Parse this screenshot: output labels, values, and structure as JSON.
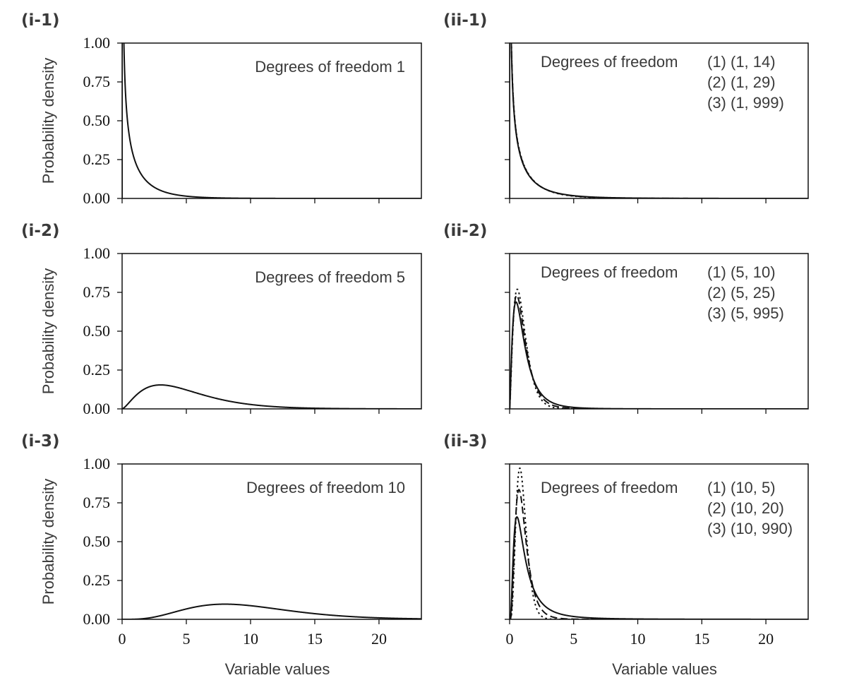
{
  "chart_data": [
    {
      "id": "i-1",
      "panel_label": "(i-1)",
      "type": "line",
      "distribution": "chi-square",
      "legend_text": "Degrees of freedom 1",
      "ylabel": "Probability density",
      "xlabel": "",
      "xlim": [
        0,
        23.3
      ],
      "ylim": [
        0,
        1.0
      ],
      "yticks": [
        "1.00",
        "0.75",
        "0.50",
        "0.25",
        "0.00"
      ],
      "xticks": [
        0,
        5,
        10,
        15,
        20
      ],
      "xtick_labels_shown": false,
      "series": [
        {
          "df": [
            1
          ],
          "style": "solid"
        }
      ]
    },
    {
      "id": "ii-1",
      "panel_label": "(ii-1)",
      "type": "line",
      "distribution": "F",
      "legend_title": "Degrees of freedom",
      "legend_entries": [
        "(1) (1, 14)",
        "(2) (1, 29)",
        "(3) (1, 999)"
      ],
      "ylabel": "",
      "xlabel": "",
      "xlim": [
        0,
        23.3
      ],
      "ylim": [
        0,
        1.0
      ],
      "xticks": [
        0,
        5,
        10,
        15,
        20
      ],
      "xtick_labels_shown": false,
      "series": [
        {
          "df": [
            1,
            14
          ],
          "style": "solid"
        },
        {
          "df": [
            1,
            29
          ],
          "style": "dashed"
        },
        {
          "df": [
            1,
            999
          ],
          "style": "dotted"
        }
      ]
    },
    {
      "id": "i-2",
      "panel_label": "(i-2)",
      "type": "line",
      "distribution": "chi-square",
      "legend_text": "Degrees of freedom 5",
      "ylabel": "Probability density",
      "xlabel": "",
      "xlim": [
        0,
        23.3
      ],
      "ylim": [
        0,
        1.0
      ],
      "yticks": [
        "1.00",
        "0.75",
        "0.50",
        "0.25",
        "0.00"
      ],
      "xticks": [
        0,
        5,
        10,
        15,
        20
      ],
      "xtick_labels_shown": false,
      "series": [
        {
          "df": [
            5
          ],
          "style": "solid"
        }
      ]
    },
    {
      "id": "ii-2",
      "panel_label": "(ii-2)",
      "type": "line",
      "distribution": "F",
      "legend_title": "Degrees of freedom",
      "legend_entries": [
        "(1) (5, 10)",
        "(2) (5, 25)",
        "(3) (5, 995)"
      ],
      "ylabel": "",
      "xlabel": "",
      "xlim": [
        0,
        23.3
      ],
      "ylim": [
        0,
        1.0
      ],
      "xticks": [
        0,
        5,
        10,
        15,
        20
      ],
      "xtick_labels_shown": false,
      "series": [
        {
          "df": [
            5,
            10
          ],
          "style": "solid"
        },
        {
          "df": [
            5,
            25
          ],
          "style": "dashed"
        },
        {
          "df": [
            5,
            995
          ],
          "style": "dotted"
        }
      ]
    },
    {
      "id": "i-3",
      "panel_label": "(i-3)",
      "type": "line",
      "distribution": "chi-square",
      "legend_text": "Degrees of freedom 10",
      "ylabel": "Probability density",
      "xlabel": "Variable values",
      "xlim": [
        0,
        23.3
      ],
      "ylim": [
        0,
        1.0
      ],
      "yticks": [
        "1.00",
        "0.75",
        "0.50",
        "0.25",
        "0.00"
      ],
      "xticks": [
        0,
        5,
        10,
        15,
        20
      ],
      "xtick_labels_shown": true,
      "series": [
        {
          "df": [
            10
          ],
          "style": "solid"
        }
      ]
    },
    {
      "id": "ii-3",
      "panel_label": "(ii-3)",
      "type": "line",
      "distribution": "F",
      "legend_title": "Degrees of freedom",
      "legend_entries": [
        "(1) (10, 5)",
        "(2) (10, 20)",
        "(3) (10, 990)"
      ],
      "ylabel": "",
      "xlabel": "Variable values",
      "xlim": [
        0,
        23.3
      ],
      "ylim": [
        0,
        1.0
      ],
      "xticks": [
        0,
        5,
        10,
        15,
        20
      ],
      "xtick_labels_shown": true,
      "series": [
        {
          "df": [
            10,
            5
          ],
          "style": "solid"
        },
        {
          "df": [
            10,
            20
          ],
          "style": "dashed"
        },
        {
          "df": [
            10,
            990
          ],
          "style": "dotted"
        }
      ]
    }
  ]
}
